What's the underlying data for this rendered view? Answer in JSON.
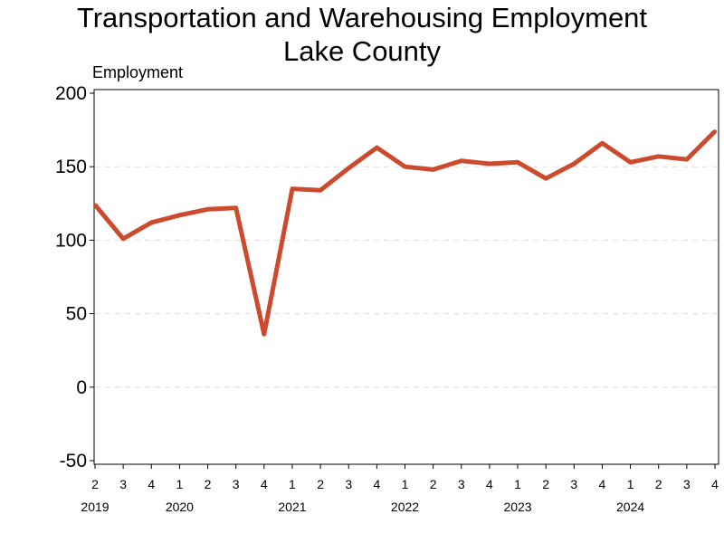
{
  "chart_data": {
    "type": "line",
    "title": "Transportation and Warehousing Employment",
    "subtitle": "Lake County",
    "ylabel": "Employment",
    "ylim": [
      -50,
      200
    ],
    "yticks": [
      -50,
      0,
      50,
      100,
      150,
      200
    ],
    "grid": true,
    "color": "#cc4a2e",
    "categories": [
      "2",
      "3",
      "4",
      "1",
      "2",
      "3",
      "4",
      "1",
      "2",
      "3",
      "4",
      "1",
      "2",
      "3",
      "4",
      "1",
      "2",
      "3",
      "4",
      "1",
      "2",
      "3",
      "4"
    ],
    "years": [
      {
        "label": "2019",
        "index": 0
      },
      {
        "label": "2020",
        "index": 3
      },
      {
        "label": "2021",
        "index": 7
      },
      {
        "label": "2022",
        "index": 11
      },
      {
        "label": "2023",
        "index": 15
      },
      {
        "label": "2024",
        "index": 19
      }
    ],
    "series": [
      {
        "values": [
          124,
          101,
          112,
          117,
          121,
          122,
          36,
          135,
          134,
          149,
          163,
          150,
          148,
          154,
          152,
          153,
          142,
          152,
          166,
          153,
          157,
          155,
          174
        ]
      }
    ]
  }
}
